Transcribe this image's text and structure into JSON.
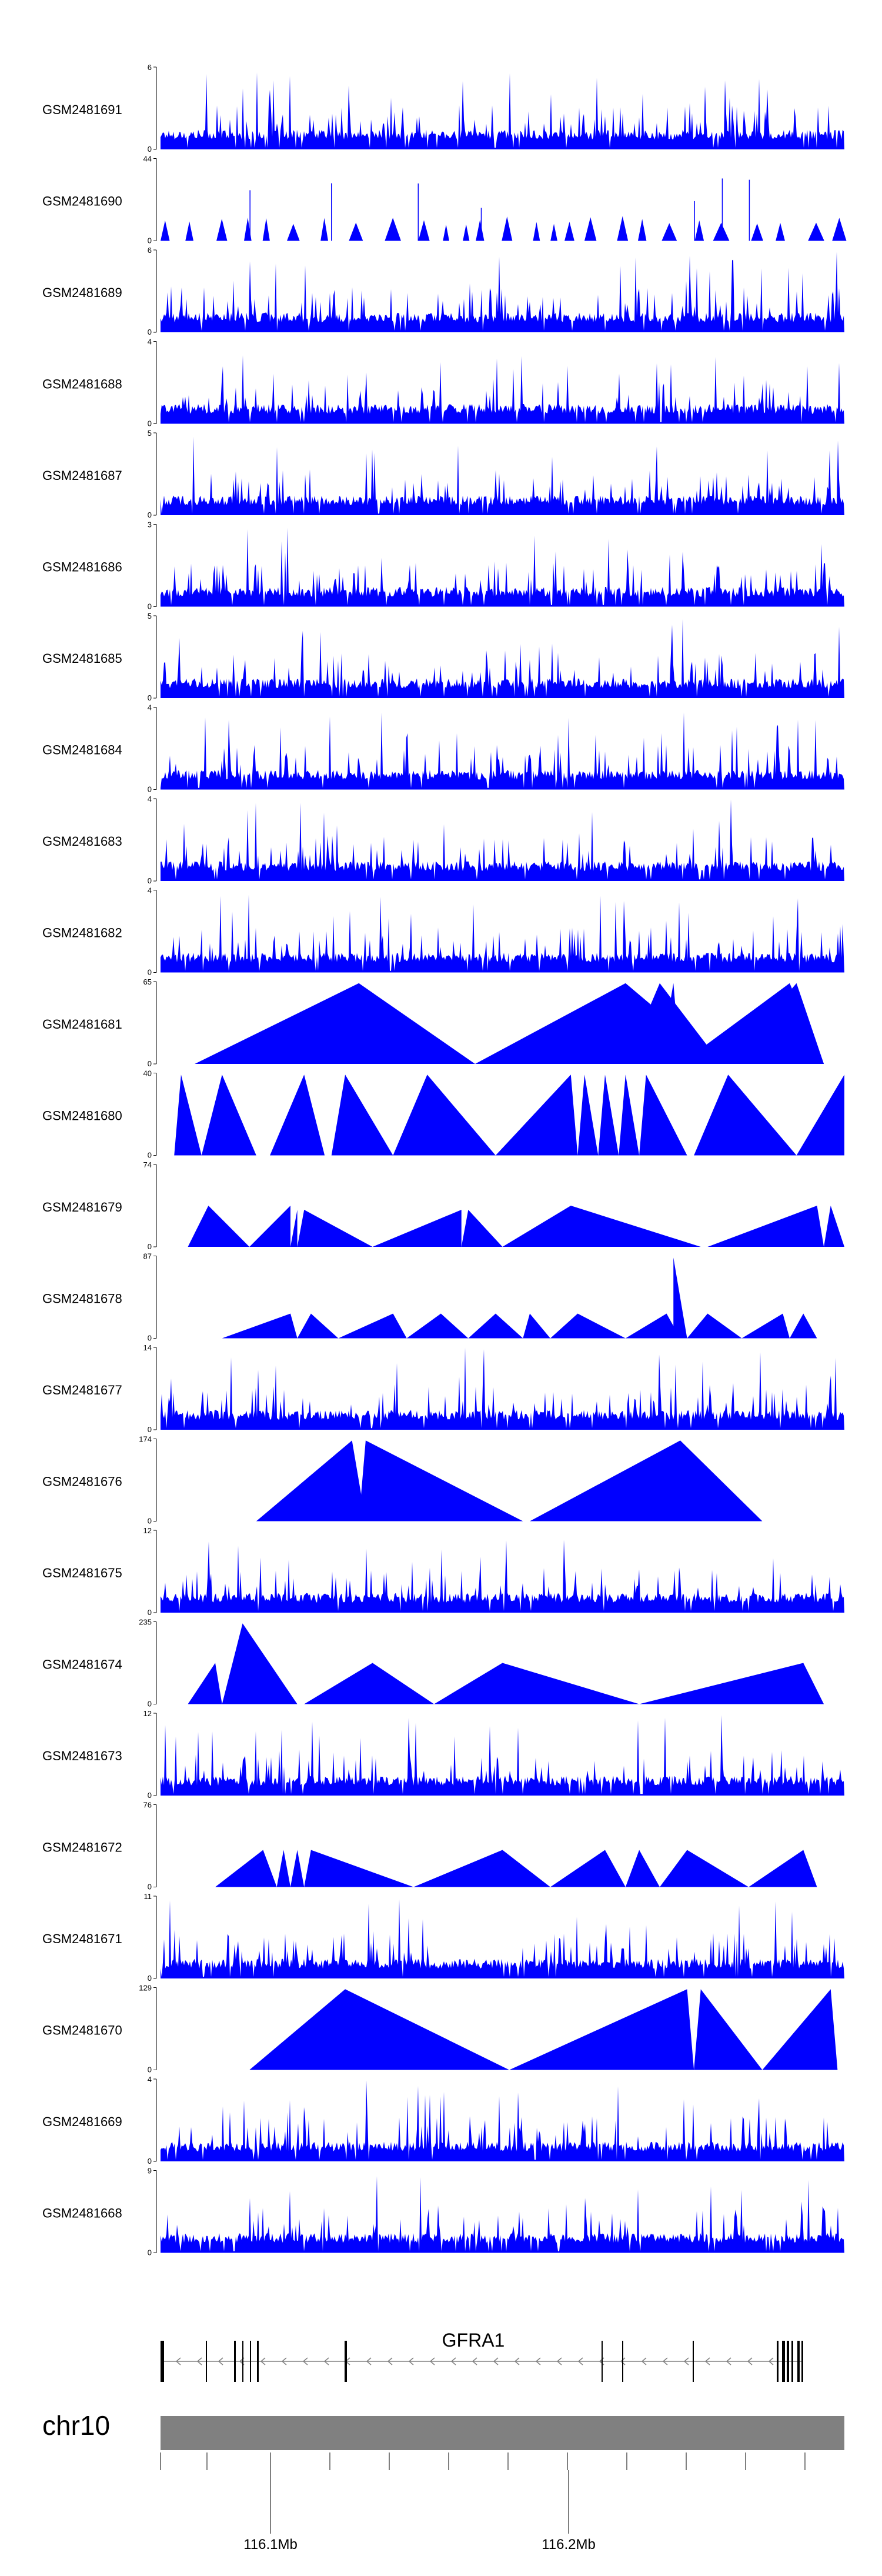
{
  "chart_data": {
    "type": "area",
    "colors": {
      "signal": "#0000ff",
      "axis": "#000000",
      "ideogram": "#808080",
      "gene": "#000000"
    },
    "tracks": [
      {
        "name": "GSM2481691",
        "ymax": 6,
        "pattern": "dense"
      },
      {
        "name": "GSM2481690",
        "ymax": 44,
        "pattern": "sparse"
      },
      {
        "name": "GSM2481689",
        "ymax": 6,
        "pattern": "dense"
      },
      {
        "name": "GSM2481688",
        "ymax": 4,
        "pattern": "dense"
      },
      {
        "name": "GSM2481687",
        "ymax": 5,
        "pattern": "dense"
      },
      {
        "name": "GSM2481686",
        "ymax": 3,
        "pattern": "dense"
      },
      {
        "name": "GSM2481685",
        "ymax": 5,
        "pattern": "dense"
      },
      {
        "name": "GSM2481684",
        "ymax": 4,
        "pattern": "dense"
      },
      {
        "name": "GSM2481683",
        "ymax": 4,
        "pattern": "dense"
      },
      {
        "name": "GSM2481682",
        "ymax": 4,
        "pattern": "dense"
      },
      {
        "name": "GSM2481681",
        "ymax": 65,
        "pattern": "broad"
      },
      {
        "name": "GSM2481680",
        "ymax": 40,
        "pattern": "broad"
      },
      {
        "name": "GSM2481679",
        "ymax": 74,
        "pattern": "broad"
      },
      {
        "name": "GSM2481678",
        "ymax": 87,
        "pattern": "broad"
      },
      {
        "name": "GSM2481677",
        "ymax": 14,
        "pattern": "dense"
      },
      {
        "name": "GSM2481676",
        "ymax": 174,
        "pattern": "broad"
      },
      {
        "name": "GSM2481675",
        "ymax": 12,
        "pattern": "dense"
      },
      {
        "name": "GSM2481674",
        "ymax": 235,
        "pattern": "broad"
      },
      {
        "name": "GSM2481673",
        "ymax": 12,
        "pattern": "dense"
      },
      {
        "name": "GSM2481672",
        "ymax": 76,
        "pattern": "broad"
      },
      {
        "name": "GSM2481671",
        "ymax": 11,
        "pattern": "dense"
      },
      {
        "name": "GSM2481670",
        "ymax": 129,
        "pattern": "broad"
      },
      {
        "name": "GSM2481669",
        "ymax": 4,
        "pattern": "dense"
      },
      {
        "name": "GSM2481668",
        "ymax": 9,
        "pattern": "dense"
      }
    ],
    "broad_peaks": {
      "GSM2481681": [
        [
          0.05,
          0.29,
          0.46
        ],
        [
          0.46,
          0.68,
          0.82
        ],
        [
          0.68,
          0.73,
          0.82
        ],
        [
          0.73,
          0.75,
          0.75
        ],
        [
          0.74,
          0.75,
          0.76
        ],
        [
          0.76,
          0.92,
          0.97
        ],
        [
          0.83,
          0.93,
          0.97
        ]
      ],
      "GSM2481680": [
        [
          0.02,
          0.03,
          0.06
        ],
        [
          0.06,
          0.09,
          0.14
        ],
        [
          0.16,
          0.21,
          0.24
        ],
        [
          0.25,
          0.27,
          0.34
        ],
        [
          0.34,
          0.39,
          0.49
        ],
        [
          0.49,
          0.6,
          0.61
        ],
        [
          0.61,
          0.62,
          0.64
        ],
        [
          0.64,
          0.65,
          0.67
        ],
        [
          0.67,
          0.68,
          0.7
        ],
        [
          0.7,
          0.71,
          0.77
        ],
        [
          0.78,
          0.83,
          0.93
        ],
        [
          0.93,
          1.0,
          1.0
        ]
      ],
      "GSM2481679": [
        [
          0.04,
          0.07,
          0.13
        ],
        [
          0.13,
          0.19,
          0.19
        ],
        [
          0.19,
          0.2,
          0.2
        ],
        [
          0.2,
          0.21,
          0.31
        ],
        [
          0.31,
          0.44,
          0.44
        ],
        [
          0.44,
          0.45,
          0.5
        ],
        [
          0.5,
          0.6,
          0.79
        ],
        [
          0.8,
          0.96,
          0.97
        ],
        [
          0.97,
          0.98,
          1.0
        ]
      ],
      "GSM2481678": [
        [
          0.09,
          0.19,
          0.2
        ],
        [
          0.2,
          0.22,
          0.26
        ],
        [
          0.26,
          0.34,
          0.36
        ],
        [
          0.36,
          0.41,
          0.45
        ],
        [
          0.45,
          0.49,
          0.53
        ],
        [
          0.53,
          0.54,
          0.57
        ],
        [
          0.57,
          0.61,
          0.68
        ],
        [
          0.68,
          0.74,
          0.76
        ],
        [
          0.75,
          0.75,
          0.77
        ],
        [
          0.77,
          0.8,
          0.85
        ],
        [
          0.85,
          0.91,
          0.92
        ],
        [
          0.92,
          0.94,
          0.96
        ]
      ],
      "GSM2481676": [
        [
          0.14,
          0.28,
          0.3
        ],
        [
          0.29,
          0.3,
          0.53
        ],
        [
          0.54,
          0.76,
          0.88
        ]
      ],
      "GSM2481674": [
        [
          0.04,
          0.08,
          0.09
        ],
        [
          0.09,
          0.12,
          0.2
        ],
        [
          0.21,
          0.31,
          0.4
        ],
        [
          0.4,
          0.5,
          0.7
        ],
        [
          0.7,
          0.94,
          0.97
        ]
      ],
      "GSM2481672": [
        [
          0.08,
          0.15,
          0.17
        ],
        [
          0.17,
          0.18,
          0.19
        ],
        [
          0.19,
          0.2,
          0.21
        ],
        [
          0.21,
          0.22,
          0.37
        ],
        [
          0.37,
          0.5,
          0.57
        ],
        [
          0.57,
          0.65,
          0.68
        ],
        [
          0.68,
          0.7,
          0.73
        ],
        [
          0.73,
          0.77,
          0.86
        ],
        [
          0.86,
          0.94,
          0.96
        ]
      ],
      "GSM2481670": [
        [
          0.13,
          0.27,
          0.51
        ],
        [
          0.51,
          0.77,
          0.78
        ],
        [
          0.78,
          0.79,
          0.88
        ],
        [
          0.88,
          0.98,
          0.99
        ]
      ]
    },
    "broad_peak_heights": {
      "GSM2481681": [
        0.98,
        0.98,
        0.98,
        0.98,
        0.98,
        0.98,
        0.98
      ],
      "GSM2481680": [
        0.98,
        0.98,
        0.98,
        0.98,
        0.98,
        0.98,
        0.98,
        0.98,
        0.98,
        0.98,
        0.98,
        0.98
      ],
      "GSM2481679": [
        0.5,
        0.5,
        0.45,
        0.45,
        0.45,
        0.45,
        0.5,
        0.5,
        0.5
      ],
      "GSM2481678": [
        0.3,
        0.3,
        0.3,
        0.3,
        0.3,
        0.3,
        0.3,
        0.3,
        0.98,
        0.3,
        0.3,
        0.3
      ],
      "GSM2481676": [
        0.98,
        0.98,
        0.98
      ],
      "GSM2481674": [
        0.5,
        0.98,
        0.5,
        0.5,
        0.5
      ],
      "GSM2481672": [
        0.45,
        0.45,
        0.45,
        0.45,
        0.45,
        0.45,
        0.45,
        0.45,
        0.45
      ],
      "GSM2481670": [
        0.98,
        0.98,
        0.98,
        0.98
      ]
    },
    "gene": {
      "name": "GFRA1",
      "strand": "-"
    },
    "chromosome": "chr10",
    "axis_ticks": [
      "116.1Mb",
      "116.2Mb"
    ]
  }
}
